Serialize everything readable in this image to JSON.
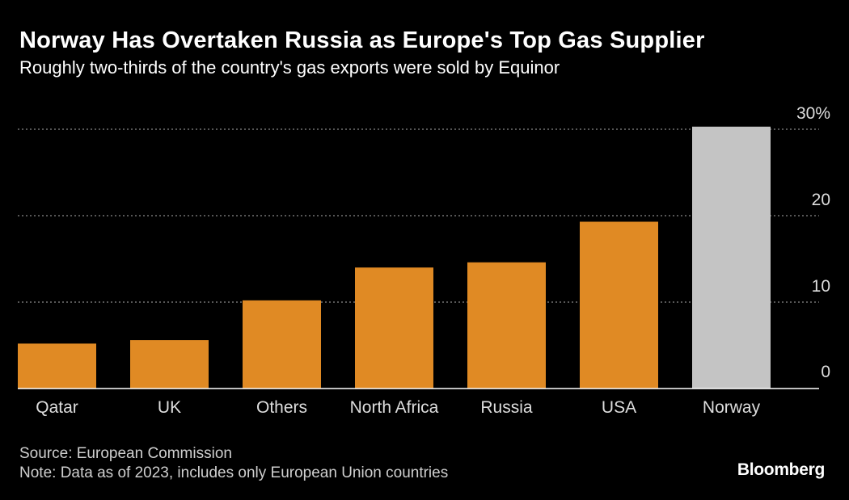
{
  "header": {
    "title": "Norway Has Overtaken Russia as Europe's Top Gas Supplier",
    "subtitle": "Roughly two-thirds of the country's gas exports were sold by Equinor"
  },
  "footer": {
    "source": "Source: European Commission",
    "note": "Note: Data as of 2023, includes only European Union countries",
    "brand": "Bloomberg"
  },
  "colors": {
    "background": "#000000",
    "bar_default": "#e08a24",
    "bar_highlight": "#c4c4c4",
    "gridline": "#8a8a8a",
    "axis": "#ffffff",
    "tick_text": "#dddddd"
  },
  "chart_data": {
    "type": "bar",
    "title": "Norway Has Overtaken Russia as Europe's Top Gas Supplier",
    "subtitle": "Roughly two-thirds of the country's gas exports were sold by Equinor",
    "categories": [
      "Qatar",
      "UK",
      "Others",
      "North Africa",
      "Russia",
      "USA",
      "Norway"
    ],
    "values": [
      5.2,
      5.6,
      10.2,
      14.0,
      14.6,
      19.3,
      30.3
    ],
    "highlight": [
      "Norway"
    ],
    "xlabel": "",
    "ylabel": "",
    "ylim": [
      0,
      30
    ],
    "yticks": [
      0,
      10,
      20,
      30
    ],
    "ytick_labels": [
      "0",
      "10",
      "20",
      "30%"
    ],
    "grid": true,
    "y_axis_side": "right"
  }
}
